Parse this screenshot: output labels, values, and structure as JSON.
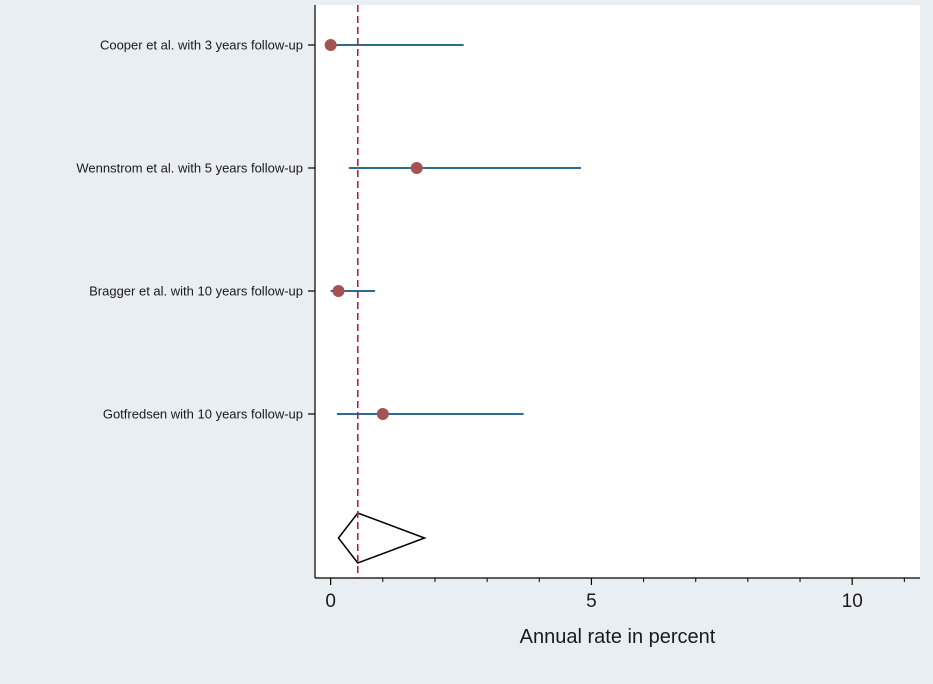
{
  "chart_data": {
    "type": "forest",
    "title": "",
    "xlabel": "Annual rate in percent",
    "ylabel": "",
    "xlim": [
      -0.3,
      11.3
    ],
    "xticks_major": [
      0,
      5,
      10
    ],
    "xticks_minor": [
      1,
      2,
      3,
      4,
      6,
      7,
      8,
      9,
      11
    ],
    "grid": false,
    "legend": "none",
    "studies": [
      {
        "label": "Cooper et al. with 3 years follow-up",
        "estimate": 0.0,
        "lower": 0.0,
        "upper": 2.55
      },
      {
        "label": "Wennstrom et al. with 5 years follow-up",
        "estimate": 1.65,
        "lower": 0.35,
        "upper": 4.8
      },
      {
        "label": "Bragger et al. with 10 years follow-up",
        "estimate": 0.15,
        "lower": 0.0,
        "upper": 0.85
      },
      {
        "label": "Gotfredsen with 10 years follow-up",
        "estimate": 1.0,
        "lower": 0.12,
        "upper": 3.7
      }
    ],
    "pooled": {
      "estimate": 0.52,
      "lower": 0.15,
      "upper": 1.8
    },
    "reference_line": 0.52,
    "colors": {
      "ci_line": "#2e6b8f",
      "point": "#a65252",
      "reference_line": "#b01e4e",
      "diamond": "#000000",
      "plot_background": "#ffffff",
      "page_background": "#e8eef2"
    }
  }
}
